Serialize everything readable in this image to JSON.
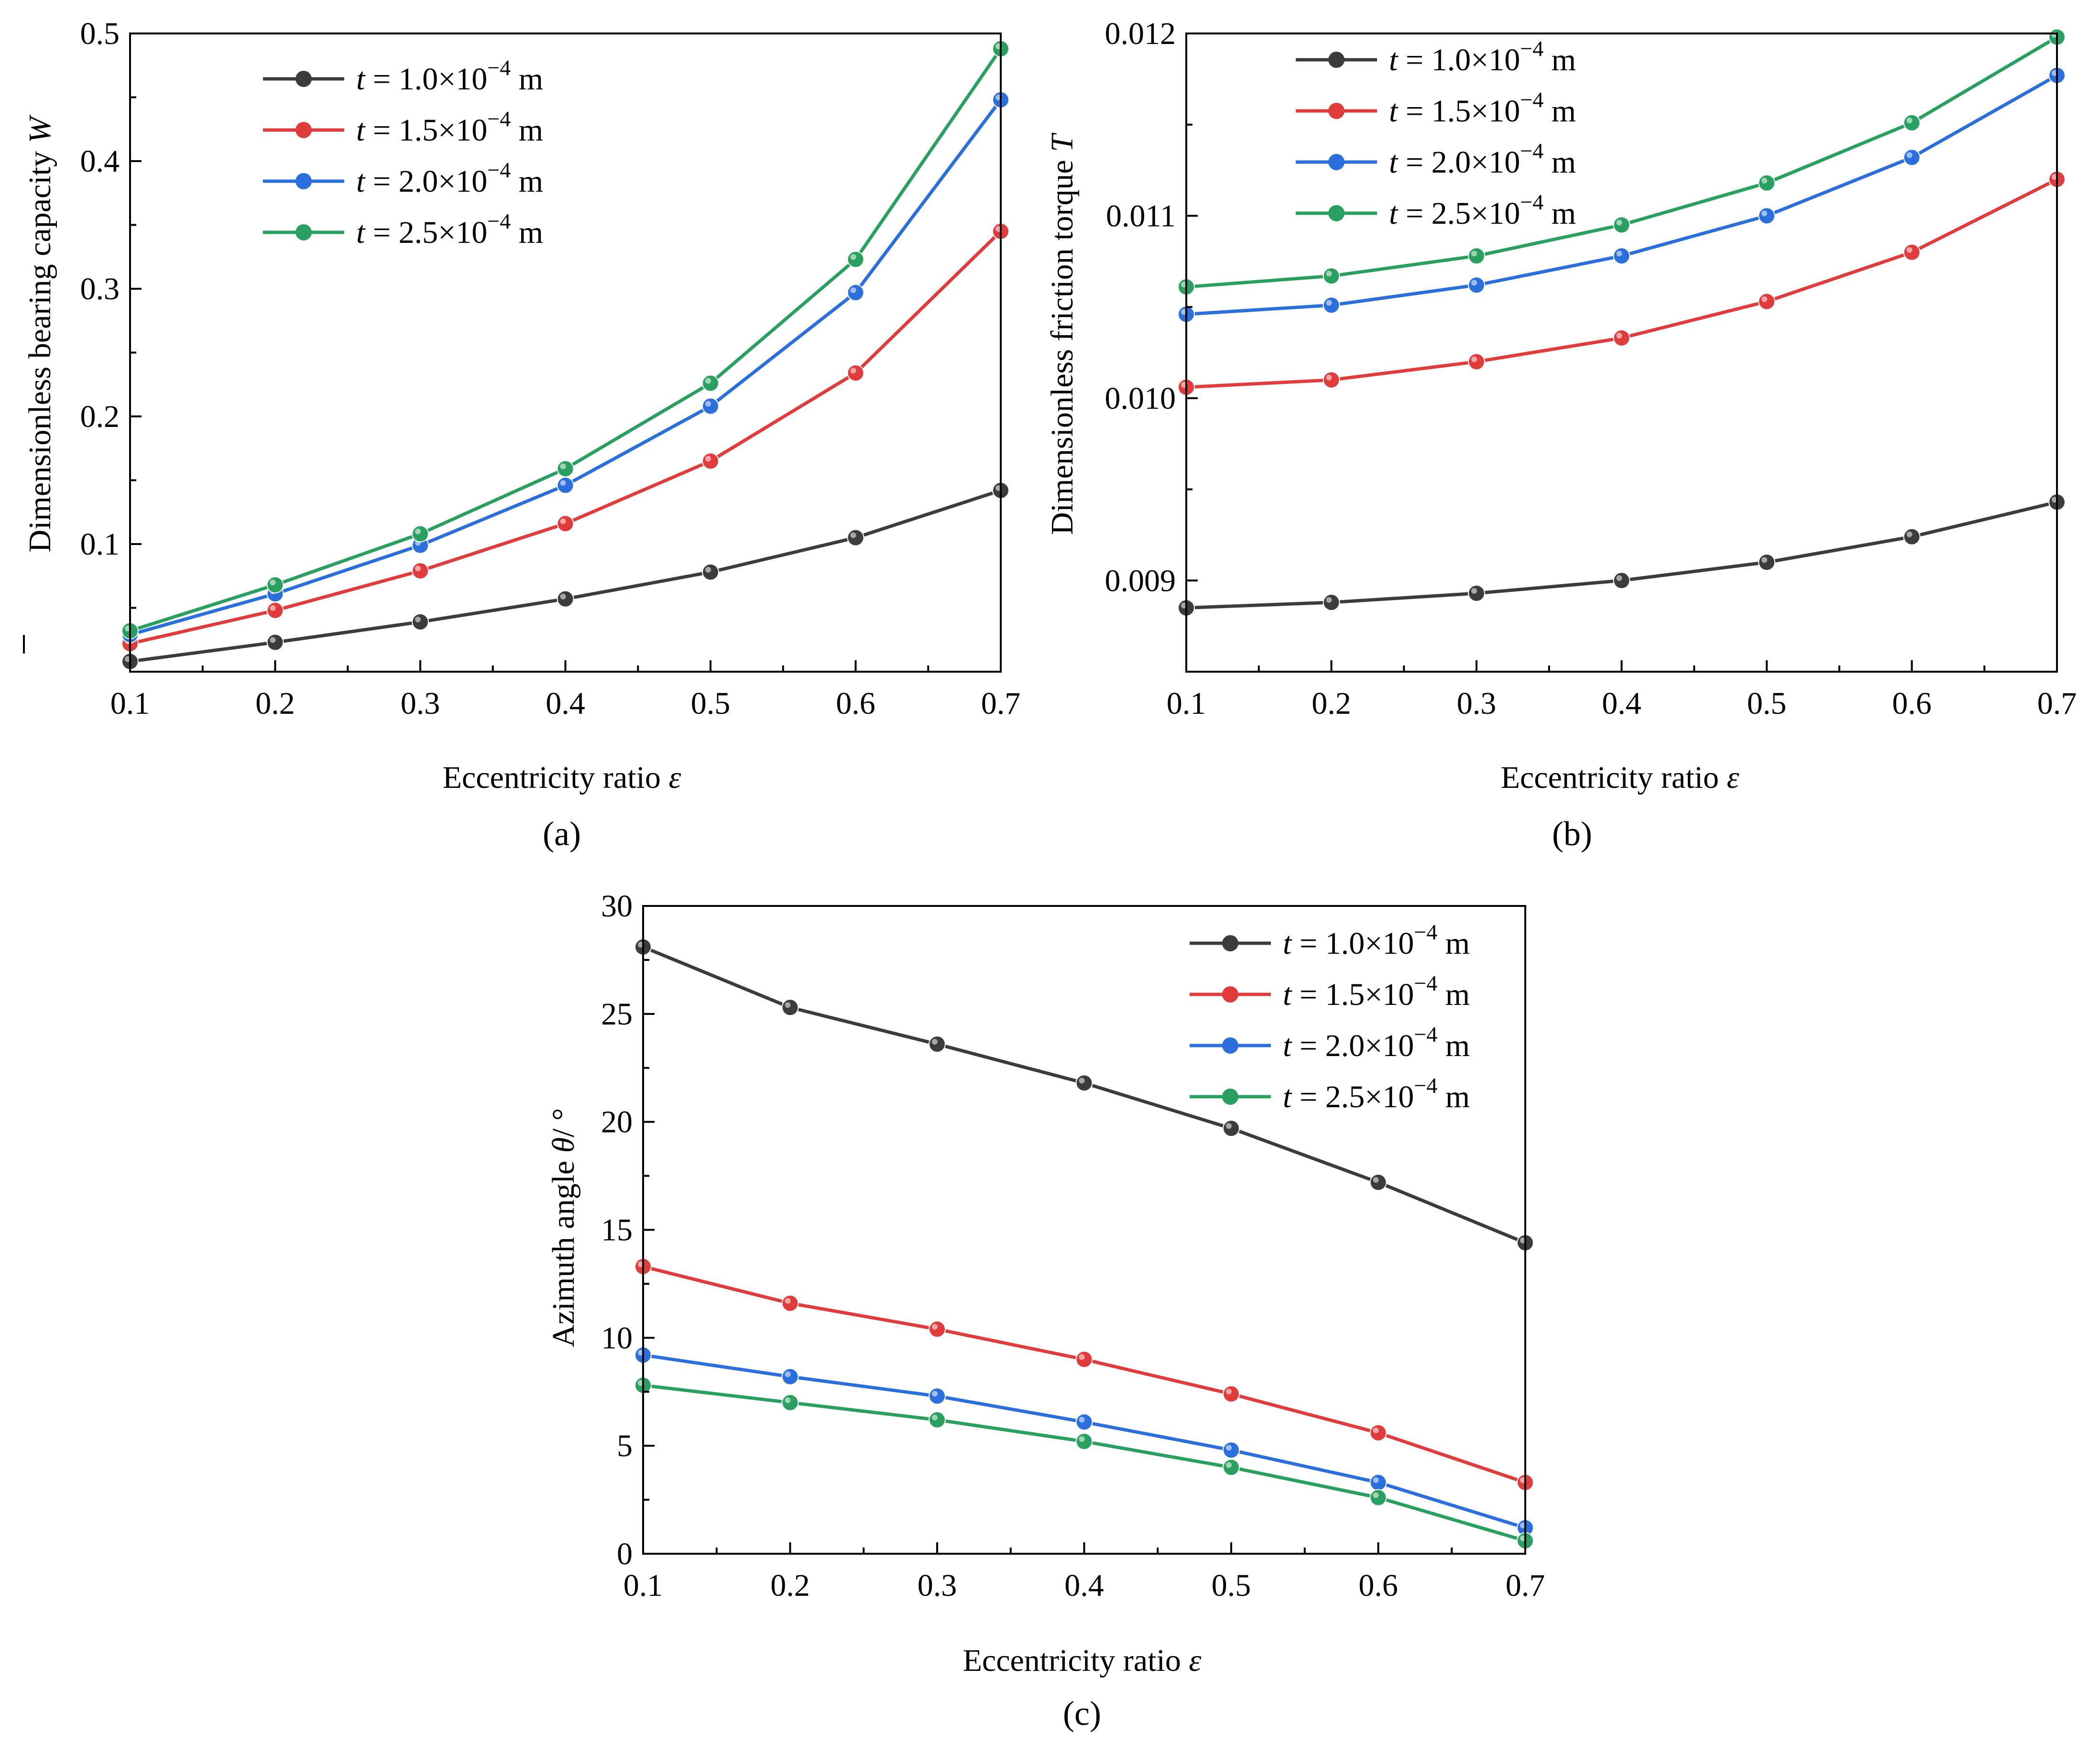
{
  "chart_data": [
    {
      "panel": "(a)",
      "type": "line",
      "xlabel": "Eccentricity ratio",
      "xlabel_symbol": "ε",
      "ylabel": "Dimensionless bearing capacity",
      "ylabel_symbol": "W",
      "x": [
        0.1,
        0.2,
        0.3,
        0.4,
        0.5,
        0.6,
        0.7
      ],
      "xlim": [
        0.1,
        0.7
      ],
      "ylim": [
        0.0,
        0.5
      ],
      "x_ticks": [
        0.1,
        0.2,
        0.3,
        0.4,
        0.5,
        0.6,
        0.7
      ],
      "y_ticks": [
        0.1,
        0.2,
        0.3,
        0.4,
        0.5
      ],
      "legend_position": "top-left",
      "series": [
        {
          "name": "t = 1.0×10⁻⁴ m",
          "color": "#3c3c3c",
          "values": [
            0.008,
            0.023,
            0.039,
            0.057,
            0.078,
            0.105,
            0.142
          ]
        },
        {
          "name": "t = 1.5×10⁻⁴ m",
          "color": "#e03c3c",
          "values": [
            0.022,
            0.048,
            0.079,
            0.116,
            0.165,
            0.234,
            0.345
          ]
        },
        {
          "name": "t = 2.0×10⁻⁴ m",
          "color": "#2a6fdb",
          "values": [
            0.029,
            0.061,
            0.099,
            0.146,
            0.208,
            0.297,
            0.448
          ]
        },
        {
          "name": "t = 2.5×10⁻⁴ m",
          "color": "#2aa060",
          "values": [
            0.032,
            0.068,
            0.108,
            0.159,
            0.226,
            0.323,
            0.488
          ]
        }
      ]
    },
    {
      "panel": "(b)",
      "type": "line",
      "xlabel": "Eccentricity ratio",
      "xlabel_symbol": "ε",
      "ylabel": "Dimensionless friction torque",
      "ylabel_symbol": "T",
      "x": [
        0.1,
        0.2,
        0.3,
        0.4,
        0.5,
        0.6,
        0.7
      ],
      "xlim": [
        0.1,
        0.7
      ],
      "ylim": [
        0.0085,
        0.012
      ],
      "x_ticks": [
        0.1,
        0.2,
        0.3,
        0.4,
        0.5,
        0.6,
        0.7
      ],
      "y_ticks": [
        0.009,
        0.01,
        0.011,
        0.012
      ],
      "y_tick_labels": [
        "0.009",
        "0.010",
        "0.011",
        "0.012"
      ],
      "legend_position": "top-left",
      "series": [
        {
          "name": "t = 1.0×10⁻⁴ m",
          "color": "#3c3c3c",
          "values": [
            0.00885,
            0.00888,
            0.00893,
            0.009,
            0.0091,
            0.00924,
            0.00943
          ]
        },
        {
          "name": "t = 1.5×10⁻⁴ m",
          "color": "#e03c3c",
          "values": [
            0.01006,
            0.0101,
            0.0102,
            0.01033,
            0.01053,
            0.0108,
            0.0112
          ]
        },
        {
          "name": "t = 2.0×10⁻⁴ m",
          "color": "#2a6fdb",
          "values": [
            0.01046,
            0.01051,
            0.01062,
            0.01078,
            0.011,
            0.01132,
            0.01177
          ]
        },
        {
          "name": "t = 2.5×10⁻⁴ m",
          "color": "#2aa060",
          "values": [
            0.01061,
            0.01067,
            0.01078,
            0.01095,
            0.01118,
            0.01151,
            0.01198
          ]
        }
      ]
    },
    {
      "panel": "(c)",
      "type": "line",
      "xlabel": "Eccentricity ratio",
      "xlabel_symbol": "ε",
      "ylabel": "Azimuth angle",
      "ylabel_symbol": "θ",
      "ylabel_unit": "/ °",
      "x": [
        0.1,
        0.2,
        0.3,
        0.4,
        0.5,
        0.6,
        0.7
      ],
      "xlim": [
        0.1,
        0.7
      ],
      "ylim": [
        0,
        30
      ],
      "x_ticks": [
        0.1,
        0.2,
        0.3,
        0.4,
        0.5,
        0.6,
        0.7
      ],
      "y_ticks": [
        0,
        5,
        10,
        15,
        20,
        25,
        30
      ],
      "legend_position": "top-right",
      "series": [
        {
          "name": "t = 1.0×10⁻⁴ m",
          "color": "#3c3c3c",
          "values": [
            28.1,
            25.3,
            23.6,
            21.8,
            19.7,
            17.2,
            14.4
          ]
        },
        {
          "name": "t = 1.5×10⁻⁴ m",
          "color": "#e03c3c",
          "values": [
            13.3,
            11.6,
            10.4,
            9.0,
            7.4,
            5.6,
            3.3
          ]
        },
        {
          "name": "t = 2.0×10⁻⁴ m",
          "color": "#2a6fdb",
          "values": [
            9.2,
            8.2,
            7.3,
            6.1,
            4.8,
            3.3,
            1.2
          ]
        },
        {
          "name": "t = 2.5×10⁻⁴ m",
          "color": "#2aa060",
          "values": [
            7.8,
            7.0,
            6.2,
            5.2,
            4.0,
            2.6,
            0.6
          ]
        }
      ]
    }
  ],
  "legend": {
    "prefix": "t",
    "prefix_equals": " = ",
    "units": " m",
    "exponent": "−4",
    "mantissas": [
      "1.0×10",
      "1.5×10",
      "2.0×10",
      "2.5×10"
    ]
  }
}
